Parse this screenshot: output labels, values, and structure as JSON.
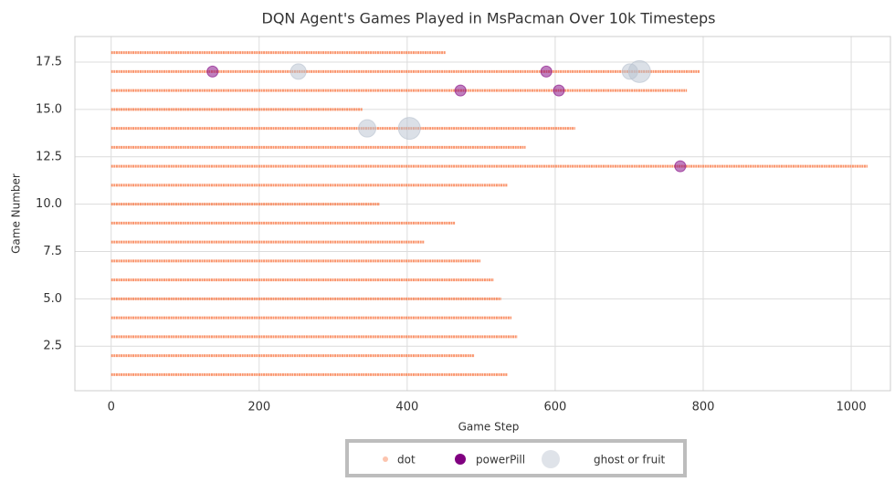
{
  "chart_data": {
    "type": "scatter",
    "title": "DQN Agent's Games Played in MsPacman Over 10k Timesteps",
    "xlabel": "Game Step",
    "ylabel": "Game Number",
    "xlim": [
      -49,
      1053
    ],
    "ylim": [
      0.15,
      18.85
    ],
    "xticks": [
      0,
      200,
      400,
      600,
      800,
      1000
    ],
    "yticks": [
      {
        "value": 2.5,
        "label": "2.5"
      },
      {
        "value": 5,
        "label": "5.0"
      },
      {
        "value": 7.5,
        "label": "7.5"
      },
      {
        "value": 10,
        "label": "10.0"
      },
      {
        "value": 12.5,
        "label": "12.5"
      },
      {
        "value": 15,
        "label": "15.0"
      },
      {
        "value": 17.5,
        "label": "17.5"
      }
    ],
    "grid": true,
    "legend": "bottom",
    "series": [
      {
        "name": "dot",
        "color": "#f98a5e",
        "values": [
          1,
          2,
          3,
          4,
          5,
          6,
          7,
          8,
          9,
          10,
          11,
          12,
          13,
          14,
          15,
          16,
          17,
          18
        ],
        "x": [
          [
            0,
            536
          ],
          [
            0,
            491
          ],
          [
            0,
            549
          ],
          [
            0,
            541
          ],
          [
            0,
            527
          ],
          [
            0,
            517
          ],
          [
            0,
            499
          ],
          [
            0,
            423
          ],
          [
            0,
            465
          ],
          [
            0,
            363
          ],
          [
            0,
            536
          ],
          [
            0,
            1022
          ],
          [
            0,
            560
          ],
          [
            0,
            627
          ],
          [
            0,
            340
          ],
          [
            0,
            778
          ],
          [
            0,
            795
          ],
          [
            0,
            452
          ]
        ]
      },
      {
        "name": "powerPill",
        "color": "#800080",
        "values": [
          17,
          17,
          16,
          16,
          12
        ],
        "x": [
          137,
          588,
          472,
          605,
          769
        ],
        "sizes": [
          1,
          1,
          1,
          1,
          1
        ]
      },
      {
        "name": "ghost or fruit",
        "color": "#b8c2cf",
        "values": [
          17,
          17,
          17,
          14,
          14
        ],
        "x": [
          253,
          701,
          714,
          346,
          403
        ],
        "sizes": [
          2,
          2,
          4,
          2.5,
          4
        ]
      }
    ]
  }
}
